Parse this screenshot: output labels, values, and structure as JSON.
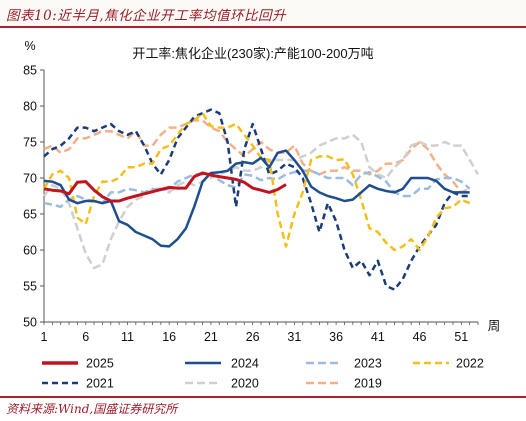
{
  "header": {
    "title": "图表10:近半月,焦化企业开工率均值环比回升"
  },
  "footer": {
    "source": "资料来源:Wind,国盛证券研究所"
  },
  "chart_data": {
    "type": "line",
    "title": "开工率:焦化企业(230家):产能100-200万吨",
    "ylabel": "%",
    "xlabel": "周",
    "ylim": [
      50,
      85
    ],
    "xlim": [
      1,
      53
    ],
    "y_ticks": [
      50,
      55,
      60,
      65,
      70,
      75,
      80,
      85
    ],
    "x_ticks": [
      1,
      6,
      11,
      16,
      21,
      26,
      31,
      36,
      41,
      46,
      51
    ],
    "grid": false,
    "legend_position": "bottom",
    "series": [
      {
        "name": "2025",
        "color": "#c0141e",
        "dash": "solid",
        "width": 3,
        "x": [
          1,
          2,
          3,
          4,
          5,
          6,
          7,
          8,
          9,
          10,
          11,
          12,
          13,
          14,
          15,
          16,
          17,
          18,
          19,
          20,
          21,
          22,
          23,
          24,
          25,
          26,
          27,
          28,
          29,
          30
        ],
        "y": [
          68.5,
          68.3,
          68.2,
          67.8,
          69.4,
          69.5,
          68.3,
          67.4,
          66.8,
          66.8,
          67.2,
          67.5,
          67.8,
          68.1,
          68.4,
          68.7,
          68.6,
          68.6,
          70.2,
          70.7,
          70.4,
          70.2,
          70.0,
          69.8,
          69.4,
          68.6,
          68.3,
          68.0,
          68.4,
          69.1
        ]
      },
      {
        "name": "2024",
        "color": "#1f4e8f",
        "dash": "solid",
        "width": 2.5,
        "x": [
          1,
          2,
          3,
          4,
          5,
          6,
          7,
          8,
          9,
          10,
          11,
          12,
          13,
          14,
          15,
          16,
          17,
          18,
          19,
          20,
          21,
          22,
          23,
          24,
          25,
          26,
          27,
          28,
          29,
          30,
          31,
          32,
          33,
          34,
          35,
          36,
          37,
          38,
          39,
          40,
          41,
          42,
          43,
          44,
          45,
          46,
          47,
          48,
          49,
          50,
          51,
          52
        ],
        "y": [
          69.6,
          69.5,
          69.0,
          67.0,
          66.5,
          66.8,
          66.8,
          66.5,
          66.8,
          64.0,
          63.5,
          62.5,
          62.0,
          61.5,
          60.6,
          60.5,
          61.5,
          63.0,
          66.0,
          69.5,
          70.7,
          70.8,
          71.0,
          72.0,
          72.2,
          72.0,
          72.8,
          71.5,
          73.5,
          73.8,
          72.5,
          71.0,
          68.8,
          68.0,
          67.5,
          67.2,
          66.8,
          67.0,
          68.0,
          69.0,
          68.5,
          68.2,
          68.0,
          68.5,
          70.0,
          70.0,
          70.0,
          69.6,
          68.5,
          68.0,
          68.0,
          68.0
        ]
      },
      {
        "name": "2023",
        "color": "#9bbbe0",
        "dash": "8,4",
        "width": 2.5,
        "x": [
          1,
          2,
          3,
          4,
          5,
          6,
          7,
          8,
          9,
          10,
          11,
          12,
          13,
          14,
          15,
          16,
          17,
          18,
          19,
          20,
          21,
          22,
          23,
          24,
          25,
          26,
          27,
          28,
          29,
          30,
          31,
          32,
          33,
          34,
          35,
          36,
          37,
          38,
          39,
          40,
          41,
          42,
          43,
          44,
          45,
          46,
          47,
          48,
          49,
          50,
          51,
          52
        ],
        "y": [
          66.5,
          66.3,
          66.0,
          67.0,
          67.5,
          67.0,
          66.8,
          66.5,
          68.0,
          68.0,
          68.5,
          68.3,
          68.0,
          68.5,
          68.3,
          68.5,
          69.5,
          70.0,
          70.5,
          70.5,
          70.6,
          69.7,
          69.0,
          68.7,
          70.5,
          70.3,
          69.7,
          70.0,
          69.8,
          70.5,
          70.8,
          71.0,
          71.0,
          70.5,
          70.0,
          70.0,
          70.0,
          69.0,
          70.5,
          70.8,
          70.2,
          69.5,
          68.0,
          67.5,
          67.5,
          68.5,
          68.5,
          69.8,
          70.0,
          70.0,
          69.5,
          68.5
        ]
      },
      {
        "name": "2022",
        "color": "#f2c01c",
        "dash": "7,4",
        "width": 2.5,
        "x": [
          1,
          2,
          3,
          4,
          5,
          6,
          7,
          8,
          9,
          10,
          11,
          12,
          13,
          14,
          15,
          16,
          17,
          18,
          19,
          20,
          21,
          22,
          23,
          24,
          25,
          26,
          27,
          28,
          29,
          30,
          31,
          32,
          33,
          34,
          35,
          36,
          37,
          38,
          39,
          40,
          41,
          42,
          43,
          44,
          45,
          46,
          47,
          48,
          49,
          50,
          51,
          52
        ],
        "y": [
          68.5,
          70.5,
          71.0,
          70.0,
          64.5,
          63.6,
          67.5,
          69.5,
          69.5,
          70.0,
          71.5,
          71.5,
          72.0,
          72.0,
          74.0,
          74.5,
          76.0,
          77.5,
          78.0,
          79.0,
          77.2,
          77.0,
          77.0,
          77.5,
          76.0,
          74.5,
          72.8,
          72.5,
          65.0,
          60.5,
          65.0,
          68.0,
          72.5,
          73.0,
          73.0,
          72.5,
          72.6,
          70.5,
          67.0,
          63.0,
          62.5,
          61.0,
          60.0,
          60.5,
          61.5,
          60.0,
          61.8,
          64.5,
          65.8,
          66.0,
          67.0,
          66.5
        ]
      },
      {
        "name": "2021",
        "color": "#1a3c78",
        "dash": "6,4",
        "width": 2.5,
        "x": [
          1,
          2,
          3,
          4,
          5,
          6,
          7,
          8,
          9,
          10,
          11,
          12,
          13,
          14,
          15,
          16,
          17,
          18,
          19,
          20,
          21,
          22,
          23,
          24,
          25,
          26,
          27,
          28,
          29,
          30,
          31,
          32,
          33,
          34,
          35,
          36,
          37,
          38,
          39,
          40,
          41,
          42,
          43,
          44,
          45,
          46,
          47,
          48,
          49,
          50,
          51,
          52
        ],
        "y": [
          73.0,
          74.0,
          74.5,
          75.5,
          77.0,
          77.0,
          76.5,
          77.0,
          77.5,
          76.5,
          76.0,
          76.5,
          74.5,
          72.0,
          70.5,
          72.5,
          75.5,
          77.0,
          78.5,
          79.0,
          79.5,
          79.0,
          75.0,
          66.0,
          74.0,
          77.5,
          74.0,
          70.5,
          71.0,
          72.0,
          71.5,
          70.0,
          66.5,
          62.5,
          66.5,
          64.0,
          60.0,
          57.5,
          58.5,
          56.5,
          58.5,
          55.0,
          54.5,
          56.0,
          58.5,
          60.5,
          62.0,
          63.5,
          66.5,
          68.0,
          67.5,
          67.5
        ]
      },
      {
        "name": "2020",
        "color": "#cfcfcf",
        "dash": "8,4",
        "width": 2.5,
        "x": [
          1,
          2,
          3,
          4,
          5,
          6,
          7,
          8,
          9,
          10,
          11,
          12,
          13,
          14,
          15,
          16,
          17,
          18,
          19,
          20,
          21,
          22,
          23,
          24,
          25,
          26,
          27,
          28,
          29,
          30,
          31,
          32,
          33,
          34,
          35,
          36,
          37,
          38,
          39,
          40,
          41,
          42,
          43,
          44,
          45,
          46,
          47,
          48,
          49,
          50,
          51,
          52,
          53
        ],
        "y": [
          67.5,
          69.0,
          68.5,
          66.5,
          63.0,
          59.5,
          57.5,
          58.0,
          61.5,
          64.0,
          66.0,
          67.0,
          67.5,
          68.5,
          68.5,
          68.0,
          69.0,
          69.5,
          69.0,
          69.5,
          70.0,
          70.5,
          71.0,
          71.5,
          71.0,
          71.0,
          71.5,
          72.5,
          72.5,
          72.5,
          72.5,
          73.0,
          73.5,
          74.5,
          75.0,
          75.5,
          75.5,
          76.0,
          75.0,
          71.5,
          70.5,
          70.0,
          71.5,
          72.5,
          74.5,
          75.0,
          74.5,
          74.5,
          75.0,
          74.5,
          74.5,
          72.5,
          70.5
        ]
      },
      {
        "name": "2019",
        "color": "#f2b08a",
        "dash": "8,4",
        "width": 2.5,
        "x": [
          1,
          2,
          3,
          4,
          5,
          6,
          7,
          8,
          9,
          10,
          11,
          12,
          13,
          14,
          15,
          16,
          17,
          18,
          19,
          20,
          21,
          22,
          23,
          24,
          25,
          26,
          27,
          28,
          29,
          30,
          31,
          32,
          33,
          34,
          35,
          36,
          37,
          38,
          39,
          40,
          41,
          42,
          43,
          44,
          45,
          46,
          47,
          48,
          49,
          50,
          51,
          52
        ],
        "y": [
          74.0,
          74.5,
          73.5,
          74.0,
          75.5,
          75.5,
          76.0,
          76.5,
          76.5,
          76.0,
          75.5,
          76.5,
          74.5,
          74.5,
          76.0,
          77.0,
          77.0,
          77.5,
          78.0,
          78.0,
          77.0,
          76.5,
          75.0,
          74.0,
          73.0,
          74.0,
          75.0,
          74.0,
          73.5,
          73.5,
          74.5,
          72.0,
          71.0,
          70.5,
          71.0,
          71.0,
          71.5,
          71.0,
          71.0,
          70.5,
          71.0,
          72.0,
          72.0,
          72.5,
          74.0,
          75.0,
          74.0,
          72.0,
          70.5,
          69.5,
          68.0,
          68.5
        ]
      }
    ]
  }
}
